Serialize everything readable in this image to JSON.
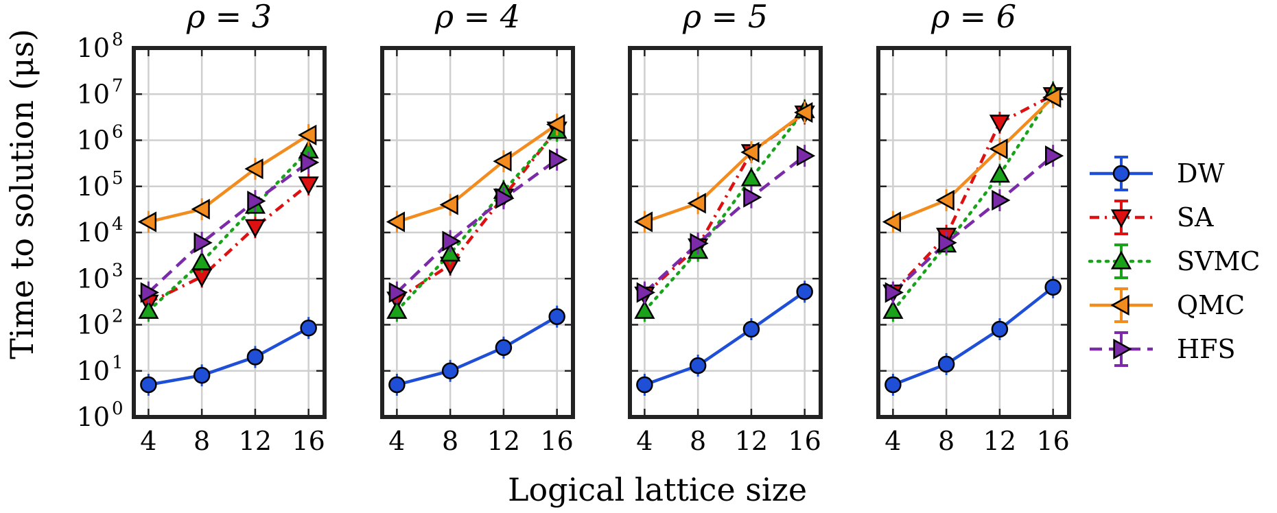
{
  "chart_data": {
    "type": "line",
    "xlabel": "Logical lattice size",
    "ylabel": "Time to solution (μs)",
    "yscale": "log",
    "ylim_exponent": [
      0,
      8
    ],
    "y_ticks": [
      {
        "base": "10",
        "exp": "0"
      },
      {
        "base": "10",
        "exp": "1"
      },
      {
        "base": "10",
        "exp": "2"
      },
      {
        "base": "10",
        "exp": "3"
      },
      {
        "base": "10",
        "exp": "4"
      },
      {
        "base": "10",
        "exp": "5"
      },
      {
        "base": "10",
        "exp": "6"
      },
      {
        "base": "10",
        "exp": "7"
      },
      {
        "base": "10",
        "exp": "8"
      }
    ],
    "x": [
      4,
      8,
      12,
      16
    ],
    "x_ticks": [
      "4",
      "8",
      "12",
      "16"
    ],
    "grid": true,
    "legend_position": "right",
    "series_styles": [
      {
        "name": "DW",
        "color": "#1f4fd6",
        "dash": "solid",
        "marker": "circle"
      },
      {
        "name": "SA",
        "color": "#dd1111",
        "dash": "dashdot",
        "marker": "triangle-down"
      },
      {
        "name": "SVMC",
        "color": "#1aa31a",
        "dash": "dotted",
        "marker": "triangle-up"
      },
      {
        "name": "QMC",
        "color": "#f28c1e",
        "dash": "solid",
        "marker": "triangle-left"
      },
      {
        "name": "HFS",
        "color": "#7b2aa8",
        "dash": "dashed",
        "marker": "triangle-right"
      }
    ],
    "panels": [
      {
        "title": "ρ = 3",
        "series": [
          {
            "name": "DW",
            "values": [
              5,
              8,
              20,
              85
            ]
          },
          {
            "name": "SA",
            "values": [
              300,
              1100,
              13000,
              110000
            ]
          },
          {
            "name": "SVMC",
            "values": [
              200,
              2300,
              38000,
              600000
            ]
          },
          {
            "name": "QMC",
            "values": [
              17000,
              32000,
              240000,
              1300000
            ]
          },
          {
            "name": "HFS",
            "values": [
              500,
              6000,
              48000,
              330000
            ]
          }
        ]
      },
      {
        "title": "ρ = 4",
        "series": [
          {
            "name": "DW",
            "values": [
              5,
              10,
              32,
              150
            ]
          },
          {
            "name": "SA",
            "values": [
              350,
              2000,
              60000,
              1700000
            ]
          },
          {
            "name": "SVMC",
            "values": [
              200,
              3500,
              80000,
              1600000
            ]
          },
          {
            "name": "QMC",
            "values": [
              17000,
              40000,
              350000,
              2200000
            ]
          },
          {
            "name": "HFS",
            "values": [
              500,
              6500,
              55000,
              380000
            ]
          }
        ]
      },
      {
        "title": "ρ = 5",
        "series": [
          {
            "name": "DW",
            "values": [
              5,
              13,
              80,
              520
            ]
          },
          {
            "name": "SA",
            "values": [
              450,
              5000,
              550000,
              3800000
            ]
          },
          {
            "name": "SVMC",
            "values": [
              200,
              4000,
              150000,
              4500000
            ]
          },
          {
            "name": "QMC",
            "values": [
              17000,
              43000,
              550000,
              4000000
            ]
          },
          {
            "name": "HFS",
            "values": [
              500,
              5800,
              58000,
              460000
            ]
          }
        ]
      },
      {
        "title": "ρ = 6",
        "series": [
          {
            "name": "DW",
            "values": [
              5,
              14,
              80,
              650
            ]
          },
          {
            "name": "SA",
            "values": [
              500,
              8500,
              2400000,
              9500000
            ]
          },
          {
            "name": "SVMC",
            "values": [
              200,
              5500,
              180000,
              11000000
            ]
          },
          {
            "name": "QMC",
            "values": [
              17000,
              50000,
              650000,
              8500000
            ]
          },
          {
            "name": "HFS",
            "values": [
              500,
              6000,
              50000,
              460000
            ]
          }
        ]
      }
    ]
  }
}
